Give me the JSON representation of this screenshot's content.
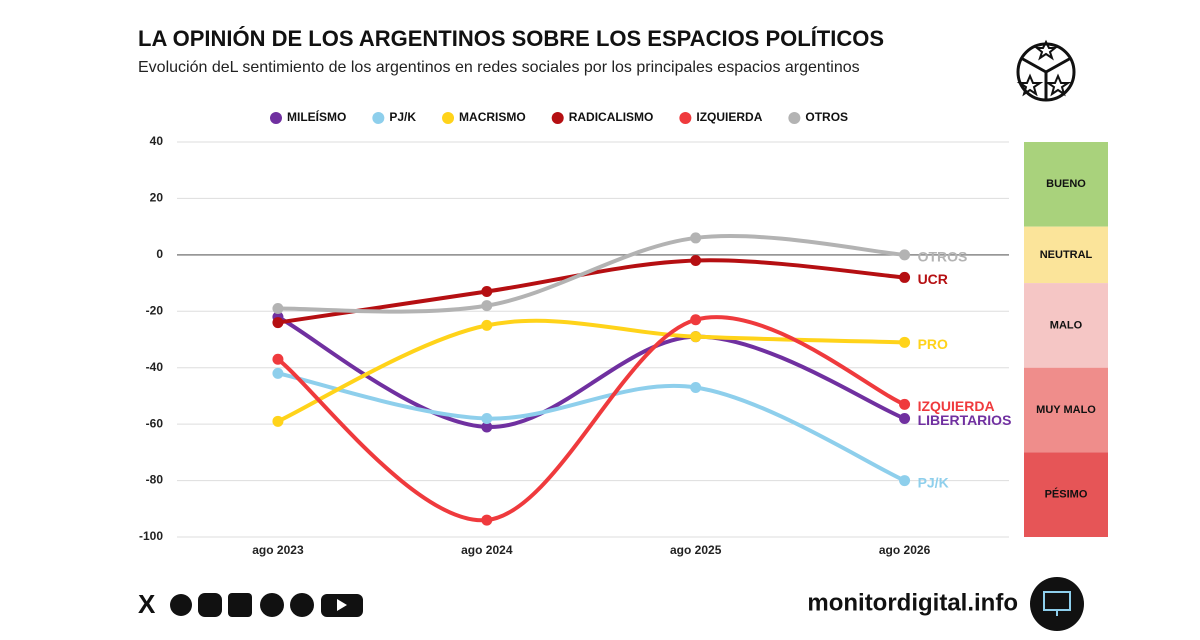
{
  "chart_data": {
    "type": "line",
    "title": "LA OPINIÓN DE LOS ARGENTINOS SOBRE LOS ESPACIOS POLÍTICOS",
    "subtitle": "Evolución deL sentimiento de los argentinos en redes sociales por los principales espacios argentinos",
    "categories": [
      "ago 2023",
      "ago 2024",
      "ago 2025",
      "ago 2026"
    ],
    "ylim": [
      -100,
      40
    ],
    "yticks": [
      40,
      20,
      0,
      -20,
      -40,
      -60,
      -80,
      -100
    ],
    "grid": true,
    "series": [
      {
        "name": "MILEÍSMO",
        "color": "#7030a0",
        "values": [
          -22,
          -61,
          -29,
          -58
        ],
        "end_label": "LIBERTARIOS"
      },
      {
        "name": "PJ/K",
        "color": "#8ecfec",
        "values": [
          -42,
          -58,
          -47,
          -80
        ],
        "end_label": "PJ/K"
      },
      {
        "name": "MACRISMO",
        "color": "#ffd31a",
        "values": [
          -59,
          -25,
          -29,
          -31
        ],
        "end_label": "PRO"
      },
      {
        "name": "RADICALISMO",
        "color": "#b50f12",
        "values": [
          -24,
          -13,
          -2,
          -8
        ],
        "end_label": "UCR"
      },
      {
        "name": "IZQUIERDA",
        "color": "#ef3a3d",
        "values": [
          -37,
          -94,
          -23,
          -53
        ],
        "end_label": "IZQUIERDA"
      },
      {
        "name": "OTROS",
        "color": "#b3b3b3",
        "values": [
          -19,
          -18,
          6,
          0
        ],
        "end_label": "OTROS"
      }
    ],
    "bands": [
      {
        "label": "BUENO",
        "from": 40,
        "to": 10,
        "color": "#a9d27c"
      },
      {
        "label": "NEUTRAL",
        "from": 10,
        "to": -10,
        "color": "#fbe49a"
      },
      {
        "label": "MALO",
        "from": -10,
        "to": -40,
        "color": "#f5c6c5"
      },
      {
        "label": "MUY MALO",
        "from": -40,
        "to": -70,
        "color": "#ef8d8b"
      },
      {
        "label": "PÉSIMO",
        "from": -70,
        "to": -100,
        "color": "#e65557"
      }
    ]
  },
  "footer": {
    "site": "monitordigital.info"
  }
}
